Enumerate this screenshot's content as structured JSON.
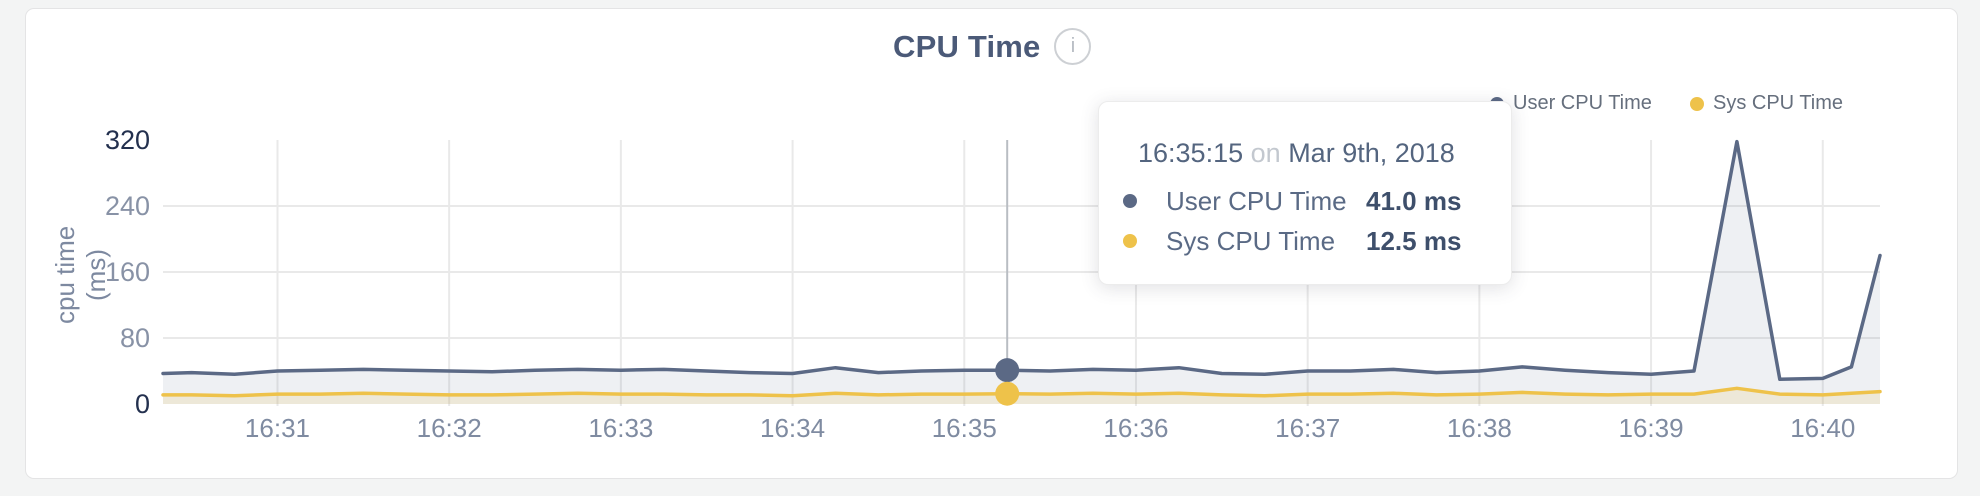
{
  "page": {
    "background": "#f3f4f4"
  },
  "card": {
    "background": "#ffffff",
    "border_color": "#e4e4e5"
  },
  "chart_data": {
    "type": "area",
    "title": "CPU Time",
    "info_icon": "i",
    "ylabel": "cpu time (ms)",
    "yticks": [
      0,
      80,
      160,
      240,
      320
    ],
    "ylim": [
      0,
      320
    ],
    "grid": true,
    "legend_position": "top-right",
    "x_range": [
      "16:30:20",
      "16:40:20"
    ],
    "x_tick_labels": [
      "16:31",
      "16:32",
      "16:33",
      "16:34",
      "16:35",
      "16:36",
      "16:37",
      "16:38",
      "16:39",
      "16:40"
    ],
    "colors": {
      "grid": "#e9e9e9",
      "ytick_dark": "#23304e",
      "ytick_light": "#8892a6",
      "xtick": "#7f8ba1",
      "hover_line": "#b9bdc3",
      "title": "#4b5a78",
      "legend_text": "#666f7d"
    },
    "series": [
      {
        "name": "User CPU Time",
        "color": "#5b6985",
        "fill": "rgba(91,105,133,0.10)",
        "points": [
          [
            "16:30:20",
            37
          ],
          [
            "16:30:30",
            38
          ],
          [
            "16:30:45",
            36
          ],
          [
            "16:31:00",
            40
          ],
          [
            "16:31:15",
            41
          ],
          [
            "16:31:30",
            42
          ],
          [
            "16:31:45",
            41
          ],
          [
            "16:32:00",
            40
          ],
          [
            "16:32:15",
            39
          ],
          [
            "16:32:30",
            41
          ],
          [
            "16:32:45",
            42
          ],
          [
            "16:33:00",
            41
          ],
          [
            "16:33:15",
            42
          ],
          [
            "16:33:30",
            40
          ],
          [
            "16:33:45",
            38
          ],
          [
            "16:34:00",
            37
          ],
          [
            "16:34:15",
            44
          ],
          [
            "16:34:30",
            38
          ],
          [
            "16:34:45",
            40
          ],
          [
            "16:35:00",
            41
          ],
          [
            "16:35:15",
            41
          ],
          [
            "16:35:30",
            40
          ],
          [
            "16:35:45",
            42
          ],
          [
            "16:36:00",
            41
          ],
          [
            "16:36:15",
            44
          ],
          [
            "16:36:30",
            37
          ],
          [
            "16:36:45",
            36
          ],
          [
            "16:37:00",
            40
          ],
          [
            "16:37:15",
            40
          ],
          [
            "16:37:30",
            42
          ],
          [
            "16:37:45",
            38
          ],
          [
            "16:38:00",
            40
          ],
          [
            "16:38:15",
            45
          ],
          [
            "16:38:30",
            41
          ],
          [
            "16:38:45",
            38
          ],
          [
            "16:39:00",
            36
          ],
          [
            "16:39:15",
            40
          ],
          [
            "16:39:30",
            318
          ],
          [
            "16:39:45",
            30
          ],
          [
            "16:40:00",
            31
          ],
          [
            "16:40:10",
            45
          ],
          [
            "16:40:20",
            180
          ]
        ]
      },
      {
        "name": "Sys CPU Time",
        "color": "#eec24a",
        "fill": "rgba(238,194,74,0.16)",
        "points": [
          [
            "16:30:20",
            11
          ],
          [
            "16:30:30",
            11
          ],
          [
            "16:30:45",
            10
          ],
          [
            "16:31:00",
            12
          ],
          [
            "16:31:15",
            12
          ],
          [
            "16:31:30",
            13
          ],
          [
            "16:31:45",
            12
          ],
          [
            "16:32:00",
            11
          ],
          [
            "16:32:15",
            11
          ],
          [
            "16:32:30",
            12
          ],
          [
            "16:32:45",
            13
          ],
          [
            "16:33:00",
            12
          ],
          [
            "16:33:15",
            12
          ],
          [
            "16:33:30",
            11
          ],
          [
            "16:33:45",
            11
          ],
          [
            "16:34:00",
            10
          ],
          [
            "16:34:15",
            13
          ],
          [
            "16:34:30",
            11
          ],
          [
            "16:34:45",
            12
          ],
          [
            "16:35:00",
            12
          ],
          [
            "16:35:15",
            12.5
          ],
          [
            "16:35:30",
            12
          ],
          [
            "16:35:45",
            13
          ],
          [
            "16:36:00",
            12
          ],
          [
            "16:36:15",
            13
          ],
          [
            "16:36:30",
            11
          ],
          [
            "16:36:45",
            10
          ],
          [
            "16:37:00",
            12
          ],
          [
            "16:37:15",
            12
          ],
          [
            "16:37:30",
            13
          ],
          [
            "16:37:45",
            11
          ],
          [
            "16:38:00",
            12
          ],
          [
            "16:38:15",
            14
          ],
          [
            "16:38:30",
            12
          ],
          [
            "16:38:45",
            11
          ],
          [
            "16:39:00",
            12
          ],
          [
            "16:39:15",
            12
          ],
          [
            "16:39:30",
            19
          ],
          [
            "16:39:45",
            12
          ],
          [
            "16:40:00",
            11
          ],
          [
            "16:40:10",
            13
          ],
          [
            "16:40:20",
            15
          ]
        ]
      }
    ],
    "hover": {
      "time": "16:35:15",
      "conjunction": "on",
      "date": "Mar 9th, 2018",
      "rows": [
        {
          "name": "User CPU Time",
          "value_label": "41.0 ms",
          "v": 41.0
        },
        {
          "name": "Sys CPU Time",
          "value_label": "12.5 ms",
          "v": 12.5
        }
      ]
    }
  }
}
